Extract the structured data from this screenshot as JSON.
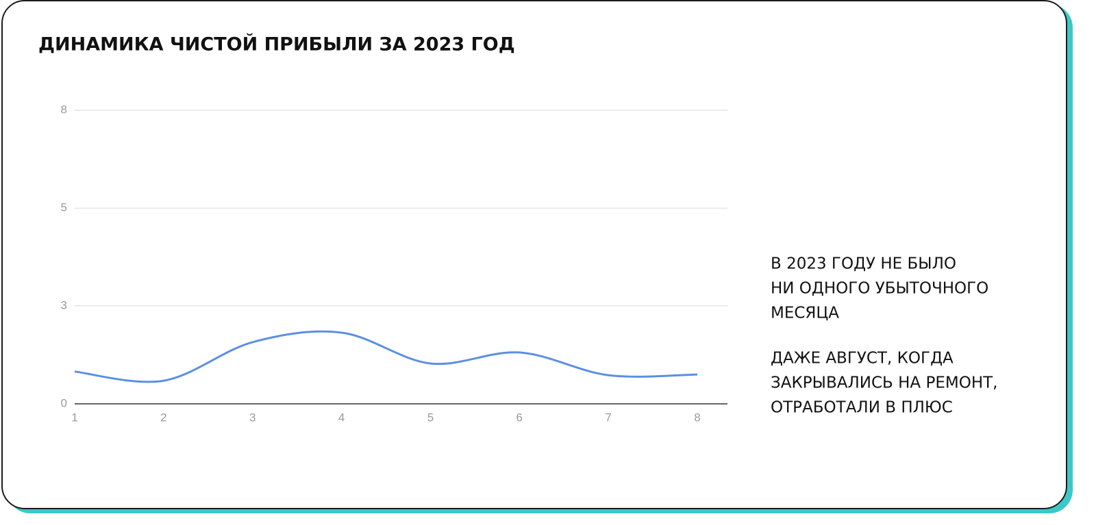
{
  "chart_data": {
    "type": "line",
    "title": "ДИНАМИКА ЧИСТОЙ ПРИБЫЛИ ЗА 2023 ГОД",
    "x": [
      1,
      2,
      3,
      4,
      5,
      6,
      7,
      8
    ],
    "series": [
      {
        "color": "#5b8fe3",
        "values": [
          0.88,
          0.63,
          1.68,
          1.94,
          1.1,
          1.4,
          0.78,
          0.8
        ]
      }
    ],
    "xlim": [
      1,
      8
    ],
    "xticks": [
      1,
      2,
      3,
      4,
      5,
      6,
      7,
      8
    ],
    "ylim": [
      0,
      8
    ],
    "yticks": [
      0,
      {
        "value": 2.67,
        "label": "3"
      },
      {
        "value": 5.33,
        "label": "5"
      },
      8
    ],
    "grid": true,
    "annotations": [
      [
        "В 2023 ГОДУ НЕ БЫЛО",
        "НИ ОДНОГО УБЫТОЧНОГО",
        "МЕСЯЦА"
      ],
      [
        "ДАЖЕ АВГУСТ, КОГДА",
        "ЗАКРЫВАЛИСЬ НА РЕМОНТ,",
        "ОТРАБОТАЛИ В ПЛЮС"
      ]
    ]
  }
}
